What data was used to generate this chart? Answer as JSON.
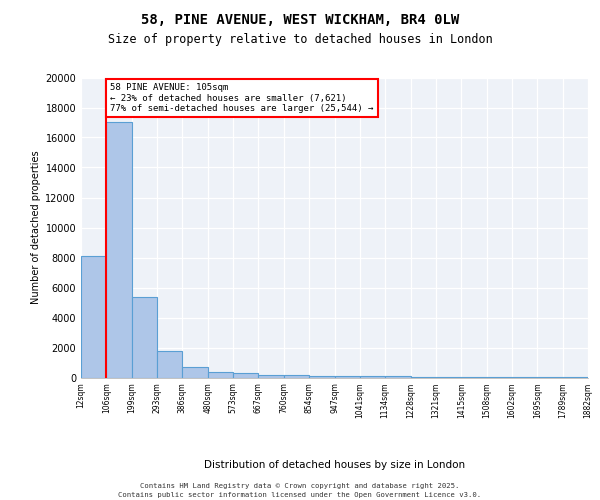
{
  "title1": "58, PINE AVENUE, WEST WICKHAM, BR4 0LW",
  "title2": "Size of property relative to detached houses in London",
  "xlabel": "Distribution of detached houses by size in London",
  "ylabel": "Number of detached properties",
  "bin_labels": [
    "12sqm",
    "106sqm",
    "199sqm",
    "293sqm",
    "386sqm",
    "480sqm",
    "573sqm",
    "667sqm",
    "760sqm",
    "854sqm",
    "947sqm",
    "1041sqm",
    "1134sqm",
    "1228sqm",
    "1321sqm",
    "1415sqm",
    "1508sqm",
    "1602sqm",
    "1695sqm",
    "1789sqm",
    "1882sqm"
  ],
  "bar_heights": [
    8100,
    17000,
    5400,
    1800,
    700,
    350,
    270,
    200,
    180,
    130,
    100,
    80,
    70,
    55,
    45,
    35,
    28,
    22,
    18,
    15
  ],
  "bar_color": "#aec6e8",
  "bar_edge_color": "#5a9fd4",
  "red_line_bin": 1,
  "annotation_text": "58 PINE AVENUE: 105sqm\n← 23% of detached houses are smaller (7,621)\n77% of semi-detached houses are larger (25,544) →",
  "ylim": [
    0,
    20000
  ],
  "yticks": [
    0,
    2000,
    4000,
    6000,
    8000,
    10000,
    12000,
    14000,
    16000,
    18000,
    20000
  ],
  "footer1": "Contains HM Land Registry data © Crown copyright and database right 2025.",
  "footer2": "Contains public sector information licensed under the Open Government Licence v3.0.",
  "bg_color": "#eef2f8"
}
